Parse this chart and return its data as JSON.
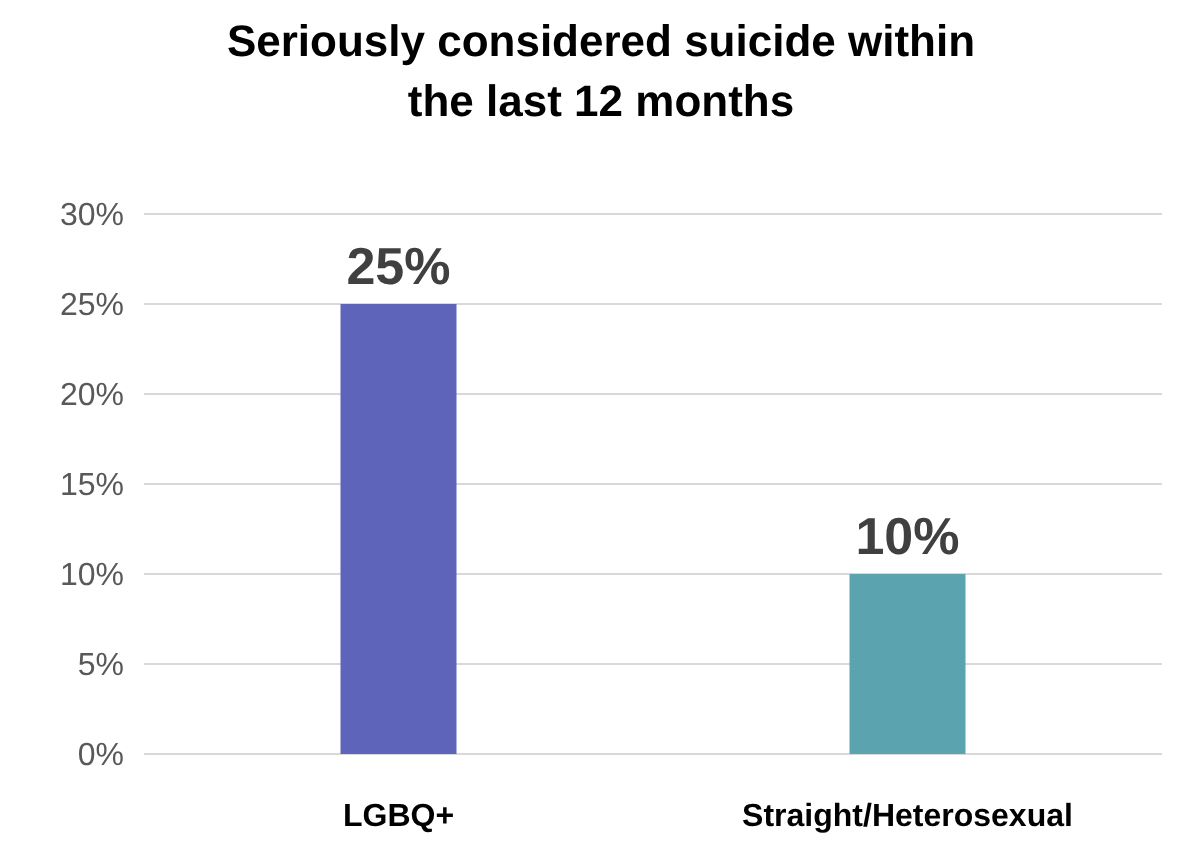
{
  "chart_data": {
    "type": "bar",
    "title": "Seriously considered suicide within the last 12 months",
    "categories": [
      "LGBQ+",
      "Straight/Heterosexual"
    ],
    "values": [
      25,
      10
    ],
    "colors": [
      "#5d64b9",
      "#5ba3ae"
    ],
    "value_labels": [
      "25%",
      "10%"
    ],
    "ylim": [
      0,
      30
    ],
    "yticks": [
      {
        "value": 0,
        "label": "0%"
      },
      {
        "value": 5,
        "label": "5%"
      },
      {
        "value": 10,
        "label": "10%"
      },
      {
        "value": 15,
        "label": "15%"
      },
      {
        "value": 20,
        "label": "20%"
      },
      {
        "value": 25,
        "label": "25%"
      },
      {
        "value": 30,
        "label": "30%"
      }
    ],
    "grid": "y"
  }
}
